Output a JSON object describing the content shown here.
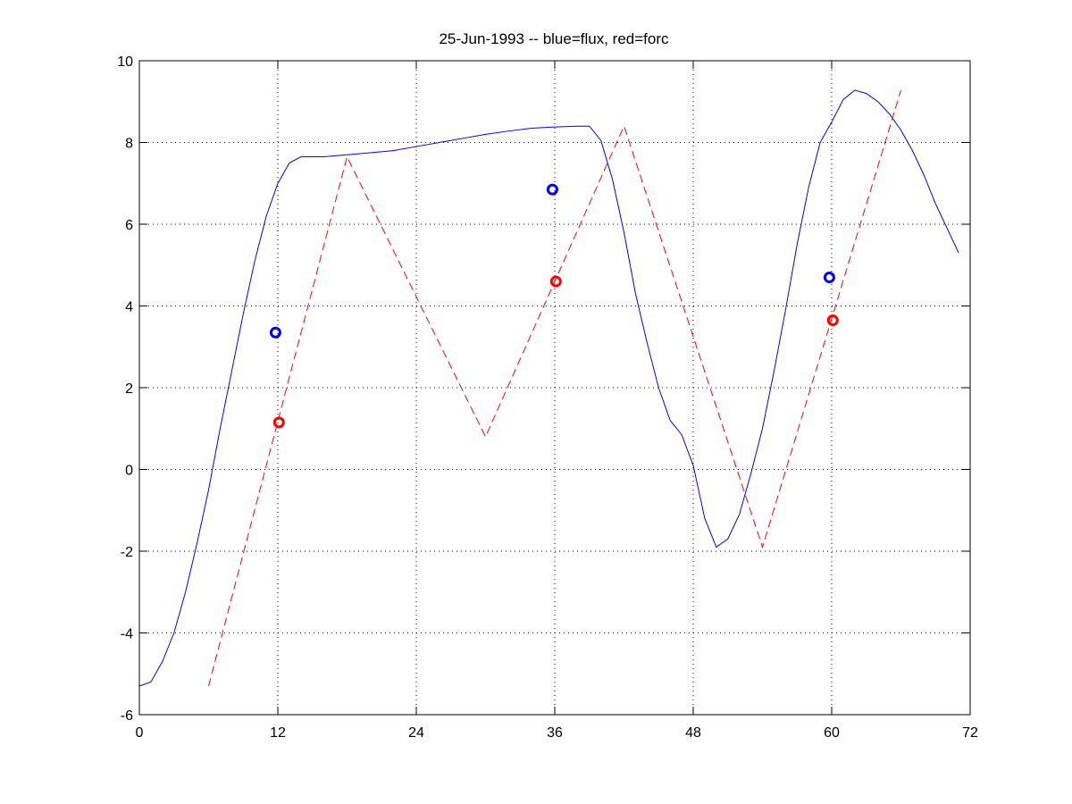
{
  "chart_data": {
    "type": "line",
    "title": "25-Jun-1993 -- blue=flux, red=forc",
    "xlabel": "",
    "ylabel": "",
    "xlim": [
      0,
      72
    ],
    "ylim": [
      -6,
      10
    ],
    "xticks": [
      0,
      12,
      24,
      36,
      48,
      60,
      72
    ],
    "yticks": [
      -6,
      -4,
      -2,
      0,
      2,
      4,
      6,
      8,
      10
    ],
    "grid": true,
    "grid_style": "dotted",
    "series": [
      {
        "color": "#0000ff",
        "style": "solid",
        "x": [
          0,
          1,
          2,
          3,
          4,
          5,
          6,
          7,
          8,
          9,
          10,
          11,
          12,
          13,
          14,
          15,
          16,
          18,
          20,
          22,
          24,
          26,
          28,
          30,
          32,
          34,
          36,
          38,
          39,
          40,
          41,
          42,
          43,
          44,
          45,
          46,
          47,
          48,
          49,
          50,
          51,
          52,
          53,
          54,
          55,
          56,
          57,
          58,
          59,
          60,
          61,
          62,
          63,
          64,
          65,
          66,
          67,
          68,
          69,
          70,
          71
        ],
        "y": [
          -5.3,
          -5.2,
          -4.7,
          -4.0,
          -3.0,
          -1.8,
          -0.5,
          1.0,
          2.4,
          3.8,
          5.1,
          6.2,
          7.0,
          7.5,
          7.65,
          7.65,
          7.65,
          7.7,
          7.75,
          7.8,
          7.9,
          8.0,
          8.1,
          8.2,
          8.28,
          8.35,
          8.38,
          8.4,
          8.4,
          8.05,
          7.1,
          5.8,
          4.3,
          3.1,
          2.0,
          1.2,
          0.85,
          0.1,
          -1.2,
          -1.9,
          -1.7,
          -1.1,
          -0.1,
          1.0,
          2.4,
          3.9,
          5.5,
          6.9,
          8.0,
          8.5,
          9.05,
          9.28,
          9.2,
          9.0,
          8.7,
          8.3,
          7.8,
          7.2,
          6.5,
          5.9,
          5.3
        ]
      },
      {
        "color": "#ff0000",
        "style": "dashed",
        "x": [
          6,
          18,
          30,
          42,
          54,
          66
        ],
        "y": [
          -5.3,
          7.65,
          0.8,
          8.4,
          -1.9,
          9.28
        ]
      }
    ],
    "points": [
      {
        "x": 11.8,
        "y": 3.35,
        "color": "#0000ff"
      },
      {
        "x": 12.1,
        "y": 1.15,
        "color": "#ff0000"
      },
      {
        "x": 35.8,
        "y": 6.85,
        "color": "#0000ff"
      },
      {
        "x": 36.1,
        "y": 4.6,
        "color": "#ff0000"
      },
      {
        "x": 59.8,
        "y": 4.7,
        "color": "#0000ff"
      },
      {
        "x": 60.1,
        "y": 3.65,
        "color": "#ff0000"
      }
    ]
  }
}
